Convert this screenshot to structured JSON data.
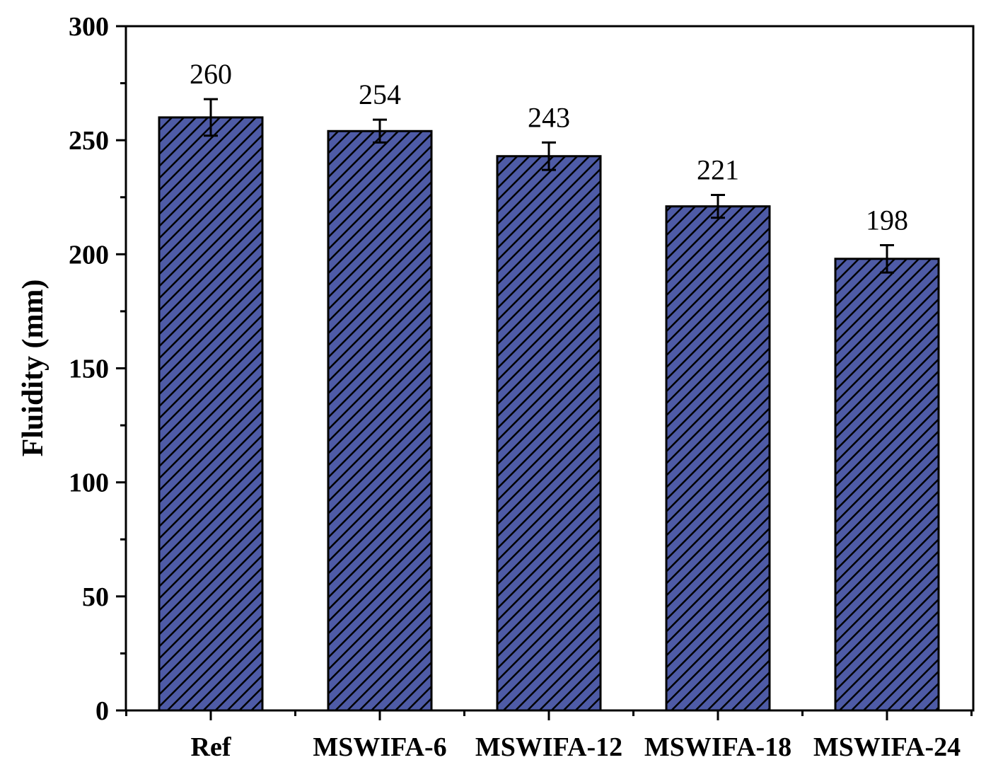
{
  "chart_data": {
    "type": "bar",
    "categories": [
      "Ref",
      "MSWIFA-6",
      "MSWIFA-12",
      "MSWIFA-18",
      "MSWIFA-24"
    ],
    "values": [
      260,
      254,
      243,
      221,
      198
    ],
    "errors": [
      8,
      5,
      6,
      5,
      6
    ],
    "data_labels": [
      "260",
      "254",
      "243",
      "221",
      "198"
    ],
    "title": "",
    "xlabel": "",
    "ylabel": "Fluidity (mm)",
    "ylim": [
      0,
      300
    ],
    "yticks": [
      0,
      50,
      100,
      150,
      200,
      250,
      300
    ],
    "ytick_labels": [
      "0",
      "50",
      "100",
      "150",
      "200",
      "250",
      "300"
    ],
    "grid": false,
    "legend": "none",
    "bar_fill": "#4E5BA6",
    "bar_hatch": "diagonal stripes",
    "hatch_color": "#000000"
  }
}
